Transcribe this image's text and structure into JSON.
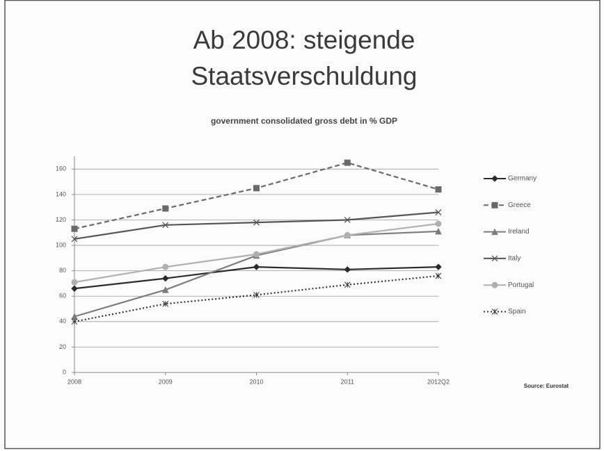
{
  "chart_data": {
    "type": "line",
    "title": [
      "Ab 2008: steigende",
      "Staatsverschuldung"
    ],
    "subtitle": "government consolidated gross debt in % GDP",
    "source": "Source: Eurostat",
    "categories": [
      "2008",
      "2009",
      "2010",
      "2011",
      "2012Q2"
    ],
    "series": [
      {
        "name": "Germany",
        "color": "#2b2b2b",
        "dash": "solid",
        "marker": "diamond",
        "values": [
          66,
          74,
          83,
          81,
          83
        ]
      },
      {
        "name": "Greece",
        "color": "#6a6a6a",
        "dash": "dashed",
        "marker": "square",
        "values": [
          113,
          129,
          145,
          165,
          144
        ]
      },
      {
        "name": "Ireland",
        "color": "#7c7c7c",
        "dash": "solid",
        "marker": "triangle",
        "values": [
          44,
          65,
          92,
          108,
          111
        ]
      },
      {
        "name": "Italy",
        "color": "#555555",
        "dash": "solid",
        "marker": "x",
        "values": [
          105,
          116,
          118,
          120,
          126
        ]
      },
      {
        "name": "Portugal",
        "color": "#b0b0b0",
        "dash": "solid",
        "marker": "circle",
        "values": [
          71,
          83,
          93,
          108,
          117
        ]
      },
      {
        "name": "Spain",
        "color": "#333333",
        "dash": "dotted",
        "marker": "star",
        "values": [
          40,
          54,
          61,
          69,
          76
        ]
      }
    ],
    "ylim": [
      0,
      170
    ],
    "yticks": [
      0,
      20,
      40,
      60,
      80,
      100,
      120,
      140,
      160
    ],
    "grid": true,
    "legend": "right"
  }
}
